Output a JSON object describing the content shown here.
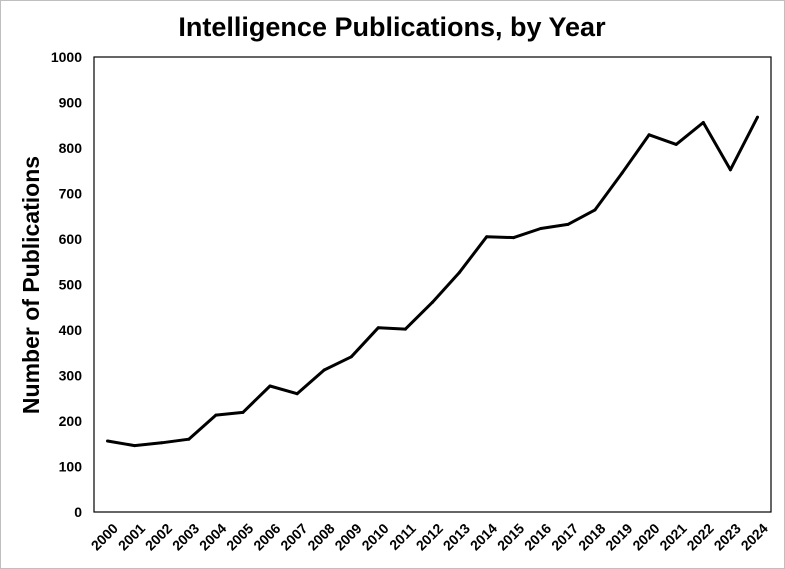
{
  "chart_data": {
    "type": "line",
    "title": "Intelligence Publications, by Year",
    "xlabel": "",
    "ylabel": "Number of Publications",
    "x": [
      "2000",
      "2001",
      "2002",
      "2003",
      "2004",
      "2005",
      "2006",
      "2007",
      "2008",
      "2009",
      "2010",
      "2011",
      "2012",
      "2013",
      "2014",
      "2015",
      "2016",
      "2017",
      "2018",
      "2019",
      "2020",
      "2021",
      "2022",
      "2023",
      "2024"
    ],
    "series": [
      {
        "values": [
          156,
          146,
          152,
          160,
          213,
          219,
          277,
          260,
          312,
          341,
          405,
          402,
          461,
          527,
          605,
          603,
          623,
          632,
          664,
          745,
          829,
          808,
          856,
          752,
          868
        ]
      }
    ],
    "yticks": [
      "0",
      "100",
      "200",
      "300",
      "400",
      "500",
      "600",
      "700",
      "800",
      "900",
      "1000"
    ],
    "ylim": [
      0,
      1000
    ],
    "grid": false,
    "legend": "none",
    "line_color": "#000000"
  }
}
